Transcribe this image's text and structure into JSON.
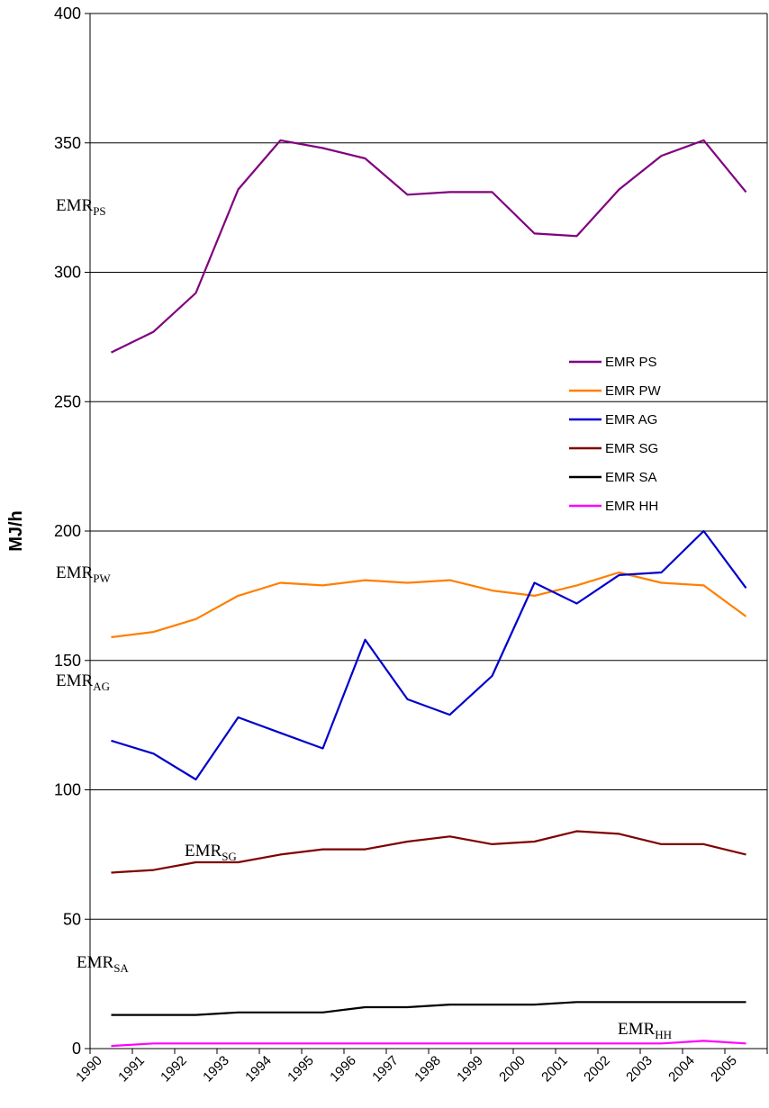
{
  "chart_data": {
    "type": "line",
    "ylabel": "MJ/h",
    "ylim": [
      0,
      400
    ],
    "yticks": [
      "0",
      "50",
      "100",
      "150",
      "200",
      "250",
      "300",
      "350",
      "400"
    ],
    "categories": [
      "1990",
      "1991",
      "1992",
      "1993",
      "1994",
      "1995",
      "1996",
      "1997",
      "1998",
      "1999",
      "2000",
      "2001",
      "2002",
      "2003",
      "2004",
      "2005"
    ],
    "grid": true,
    "legend_position": "right",
    "series": [
      {
        "name": "EMR PS",
        "color": "#800080",
        "values": [
          269,
          277,
          292,
          332,
          351,
          348,
          344,
          330,
          331,
          331,
          315,
          314,
          332,
          345,
          351,
          331
        ]
      },
      {
        "name": "EMR PW",
        "color": "#ff7f00",
        "values": [
          159,
          161,
          166,
          175,
          180,
          179,
          181,
          180,
          181,
          177,
          175,
          179,
          184,
          180,
          179,
          167
        ]
      },
      {
        "name": "EMR AG",
        "color": "#0000cc",
        "values": [
          119,
          114,
          104,
          128,
          122,
          116,
          158,
          135,
          129,
          144,
          180,
          172,
          183,
          184,
          200,
          178
        ]
      },
      {
        "name": "EMR SG",
        "color": "#800000",
        "values": [
          68,
          69,
          72,
          72,
          75,
          77,
          77,
          80,
          82,
          79,
          80,
          84,
          83,
          79,
          79,
          75
        ]
      },
      {
        "name": "EMR SA",
        "color": "#000000",
        "values": [
          13,
          13,
          13,
          14,
          14,
          14,
          16,
          16,
          17,
          17,
          17,
          18,
          18,
          18,
          18,
          18
        ]
      },
      {
        "name": "EMR HH",
        "color": "#ff00ff",
        "values": [
          1,
          2,
          2,
          2,
          2,
          2,
          2,
          2,
          2,
          2,
          2,
          2,
          2,
          2,
          3,
          2
        ]
      }
    ],
    "annotations": [
      {
        "base": "EMR",
        "sub": "PS"
      },
      {
        "base": "EMR",
        "sub": "PW"
      },
      {
        "base": "EMR",
        "sub": "AG"
      },
      {
        "base": "EMR",
        "sub": "SG"
      },
      {
        "base": "EMR",
        "sub": "SA"
      },
      {
        "base": "EMR",
        "sub": "HH"
      }
    ]
  }
}
